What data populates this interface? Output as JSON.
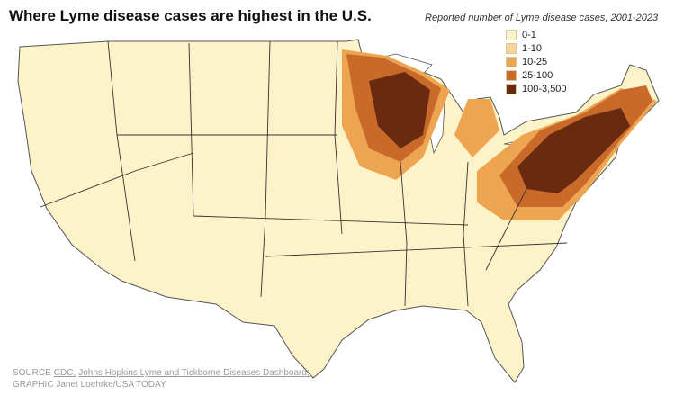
{
  "header": {
    "title": "Where Lyme disease cases are highest in the U.S."
  },
  "legend": {
    "title": "Reported number of Lyme disease cases, 2001-2023",
    "items": [
      {
        "label": "0-1",
        "color": "#fdf3c8"
      },
      {
        "label": "1-10",
        "color": "#f7d596"
      },
      {
        "label": "10-25",
        "color": "#eda552"
      },
      {
        "label": "25-100",
        "color": "#c96a2b"
      },
      {
        "label": "100-3,500",
        "color": "#6a2a10"
      }
    ]
  },
  "footer": {
    "source_label": "SOURCE",
    "links": [
      "CDC,",
      "Johns Hopkins Lyme and Tickborne Diseases Dashboard;"
    ],
    "credit": "GRAPHIC Janet Loehrke/USA TODAY"
  }
}
